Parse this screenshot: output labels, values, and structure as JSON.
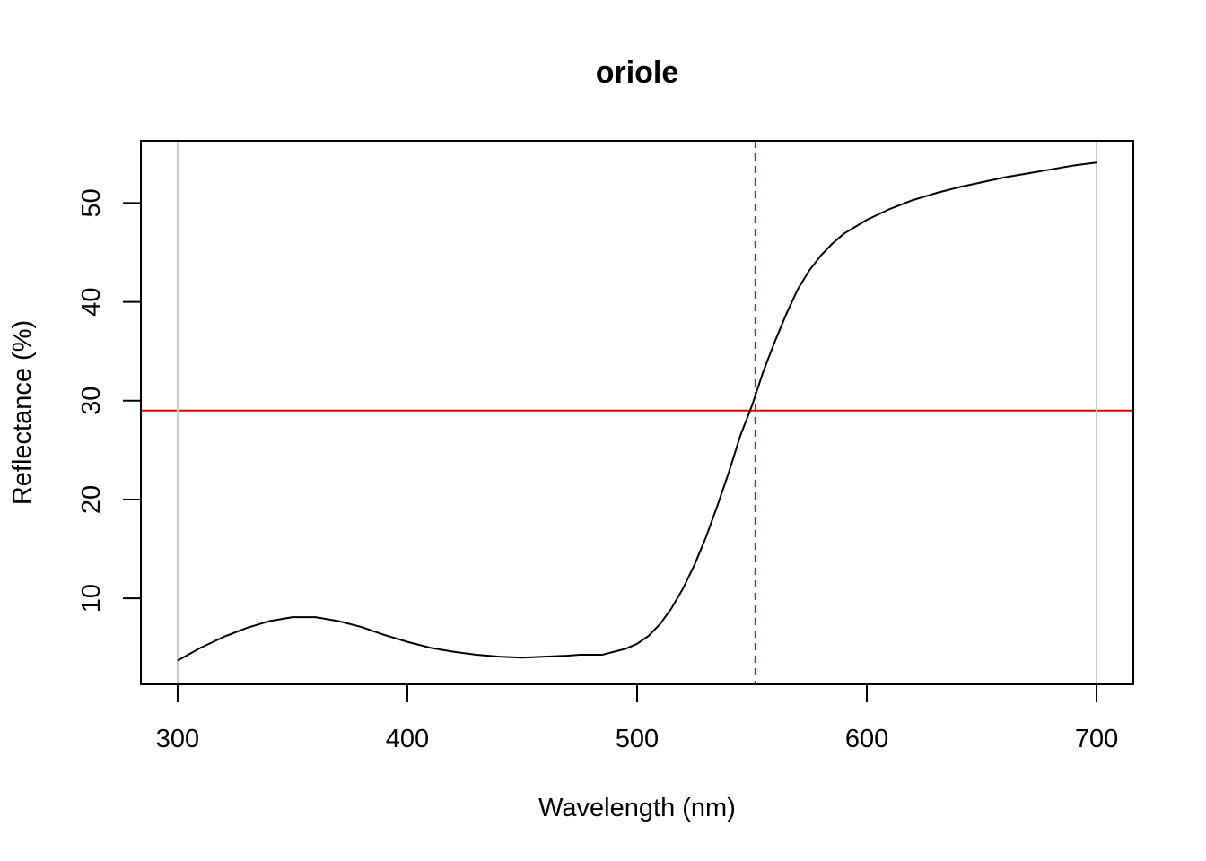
{
  "chart_data": {
    "type": "line",
    "title": "oriole",
    "xlabel": "Wavelength (nm)",
    "ylabel": "Reflectance (%)",
    "xlim": [
      284,
      716
    ],
    "ylim": [
      1.3,
      56.3
    ],
    "x_ticks": [
      300,
      400,
      500,
      600,
      700
    ],
    "y_ticks": [
      10,
      20,
      30,
      40,
      50
    ],
    "grid": false,
    "legend": "none",
    "series": [
      {
        "color": "#000000",
        "points": [
          [
            300,
            3.7
          ],
          [
            310,
            5.0
          ],
          [
            320,
            6.1
          ],
          [
            330,
            7.0
          ],
          [
            340,
            7.7
          ],
          [
            350,
            8.1
          ],
          [
            360,
            8.1
          ],
          [
            370,
            7.7
          ],
          [
            380,
            7.1
          ],
          [
            390,
            6.3
          ],
          [
            400,
            5.6
          ],
          [
            410,
            5.0
          ],
          [
            420,
            4.6
          ],
          [
            430,
            4.3
          ],
          [
            440,
            4.1
          ],
          [
            450,
            4.0
          ],
          [
            460,
            4.1
          ],
          [
            470,
            4.2
          ],
          [
            475,
            4.3
          ],
          [
            485,
            4.3
          ],
          [
            490,
            4.6
          ],
          [
            495,
            4.9
          ],
          [
            500,
            5.4
          ],
          [
            505,
            6.2
          ],
          [
            510,
            7.4
          ],
          [
            515,
            9.0
          ],
          [
            520,
            11.0
          ],
          [
            525,
            13.4
          ],
          [
            530,
            16.2
          ],
          [
            535,
            19.4
          ],
          [
            540,
            22.8
          ],
          [
            545,
            26.5
          ],
          [
            550,
            29.5
          ],
          [
            555,
            33.0
          ],
          [
            560,
            36.0
          ],
          [
            565,
            38.8
          ],
          [
            570,
            41.3
          ],
          [
            575,
            43.2
          ],
          [
            580,
            44.7
          ],
          [
            585,
            45.9
          ],
          [
            590,
            46.9
          ],
          [
            600,
            48.3
          ],
          [
            610,
            49.4
          ],
          [
            620,
            50.3
          ],
          [
            630,
            51.0
          ],
          [
            640,
            51.6
          ],
          [
            650,
            52.1
          ],
          [
            660,
            52.6
          ],
          [
            670,
            53.0
          ],
          [
            680,
            53.4
          ],
          [
            690,
            53.8
          ],
          [
            700,
            54.1
          ]
        ]
      }
    ],
    "reference_lines": [
      {
        "orientation": "horizontal",
        "value": 29.0,
        "color": "#dd0000",
        "style": "solid"
      },
      {
        "orientation": "vertical",
        "value": 551.5,
        "color": "#dd0000",
        "style": "dashed"
      },
      {
        "orientation": "vertical",
        "value": 300,
        "color": "#cccccc",
        "style": "solid"
      },
      {
        "orientation": "vertical",
        "value": 700,
        "color": "#cccccc",
        "style": "solid"
      }
    ]
  }
}
